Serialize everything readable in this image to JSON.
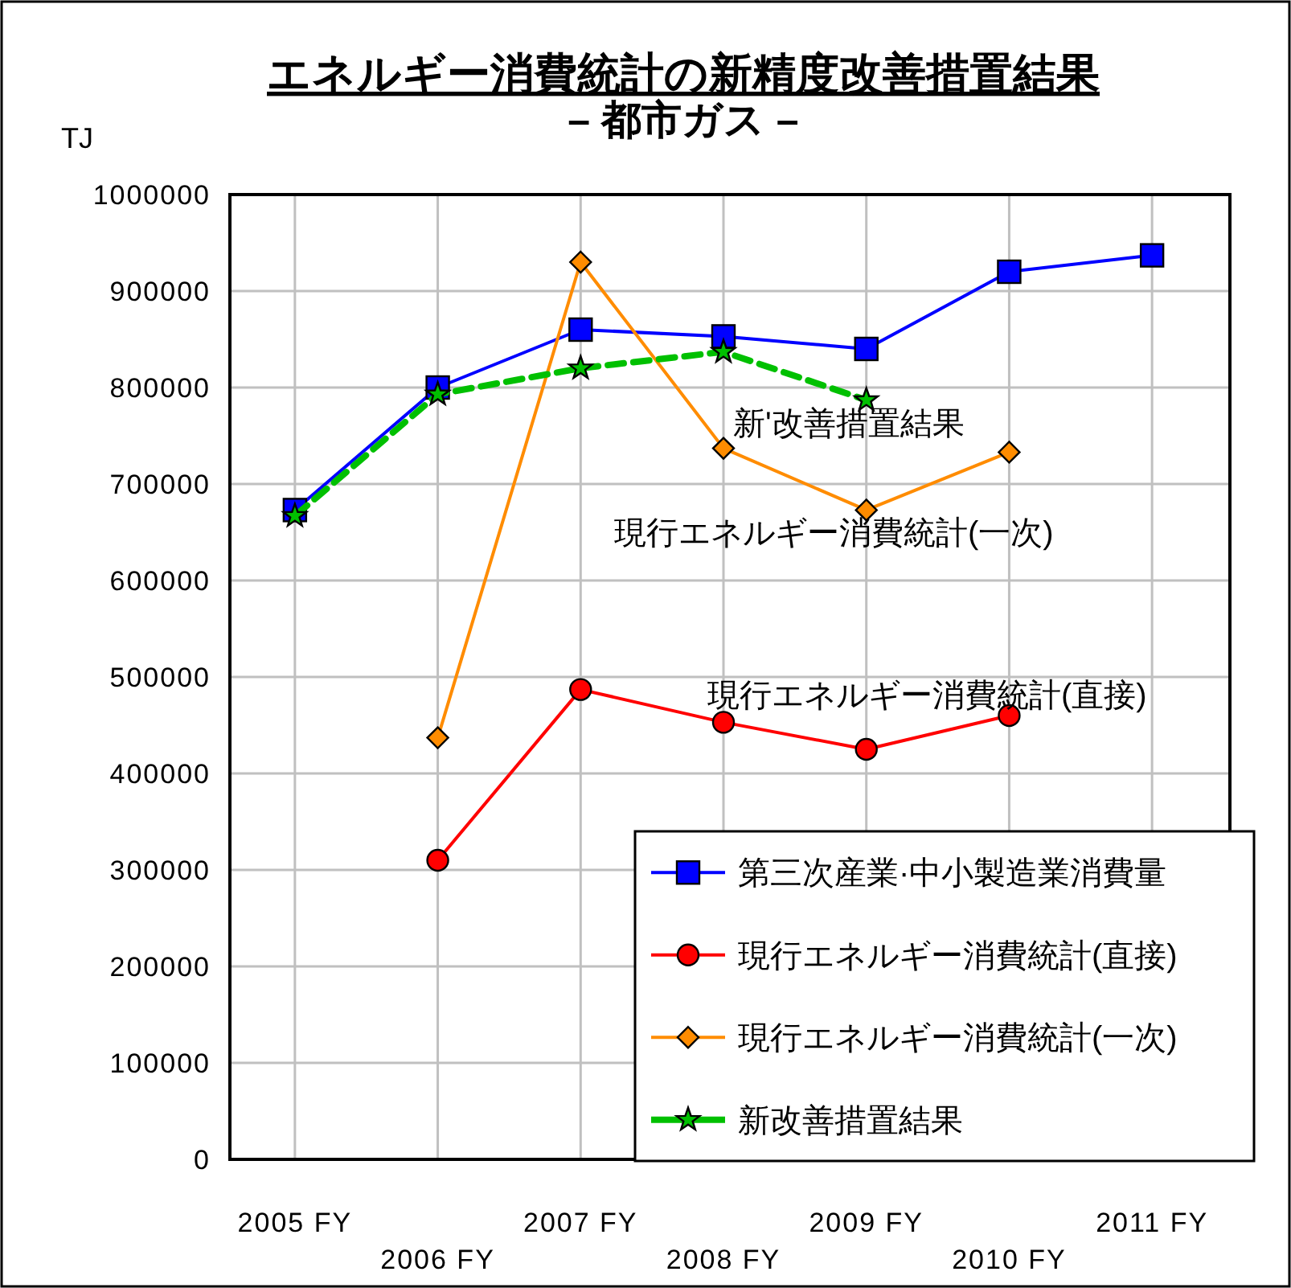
{
  "chart_data": {
    "type": "line",
    "title": "エネルギー消費統計の新精度改善措置結果",
    "subtitle": "– 都市ガス –",
    "ylabel": "TJ",
    "categories": [
      "2005 FY",
      "2006 FY",
      "2007 FY",
      "2008 FY",
      "2009 FY",
      "2010 FY",
      "2011 FY"
    ],
    "series": [
      {
        "name": "第三次産業·中小製造業消費量",
        "color": "#0000ff",
        "marker": "square",
        "line_style": "solid",
        "values": [
          673000,
          800000,
          860000,
          853000,
          840000,
          920000,
          937000
        ]
      },
      {
        "name": "現行エネルギー消費統計(直接)",
        "color": "#ff0000",
        "marker": "circle",
        "line_style": "solid",
        "values": [
          null,
          310000,
          487000,
          453000,
          425000,
          460000,
          null
        ]
      },
      {
        "name": "現行エネルギー消費統計(一次)",
        "color": "#ff8c00",
        "marker": "diamond",
        "line_style": "solid",
        "values": [
          null,
          437000,
          930000,
          737000,
          673000,
          733000,
          null
        ]
      },
      {
        "name": "新改善措置結果",
        "color": "#00c000",
        "marker": "star",
        "line_style": "dashed",
        "values": [
          667000,
          793000,
          820000,
          837000,
          787000,
          null,
          null
        ]
      }
    ],
    "ylim": [
      0,
      1000000
    ],
    "yticks": [
      0,
      100000,
      200000,
      300000,
      400000,
      500000,
      600000,
      700000,
      800000,
      900000,
      1000000
    ],
    "grid": true,
    "legend": "bottom right",
    "annotations": [
      "新'改善措置結果",
      "現行エネルギー消費統計(一次)",
      "現行エネルギー消費統計(直接)"
    ]
  }
}
